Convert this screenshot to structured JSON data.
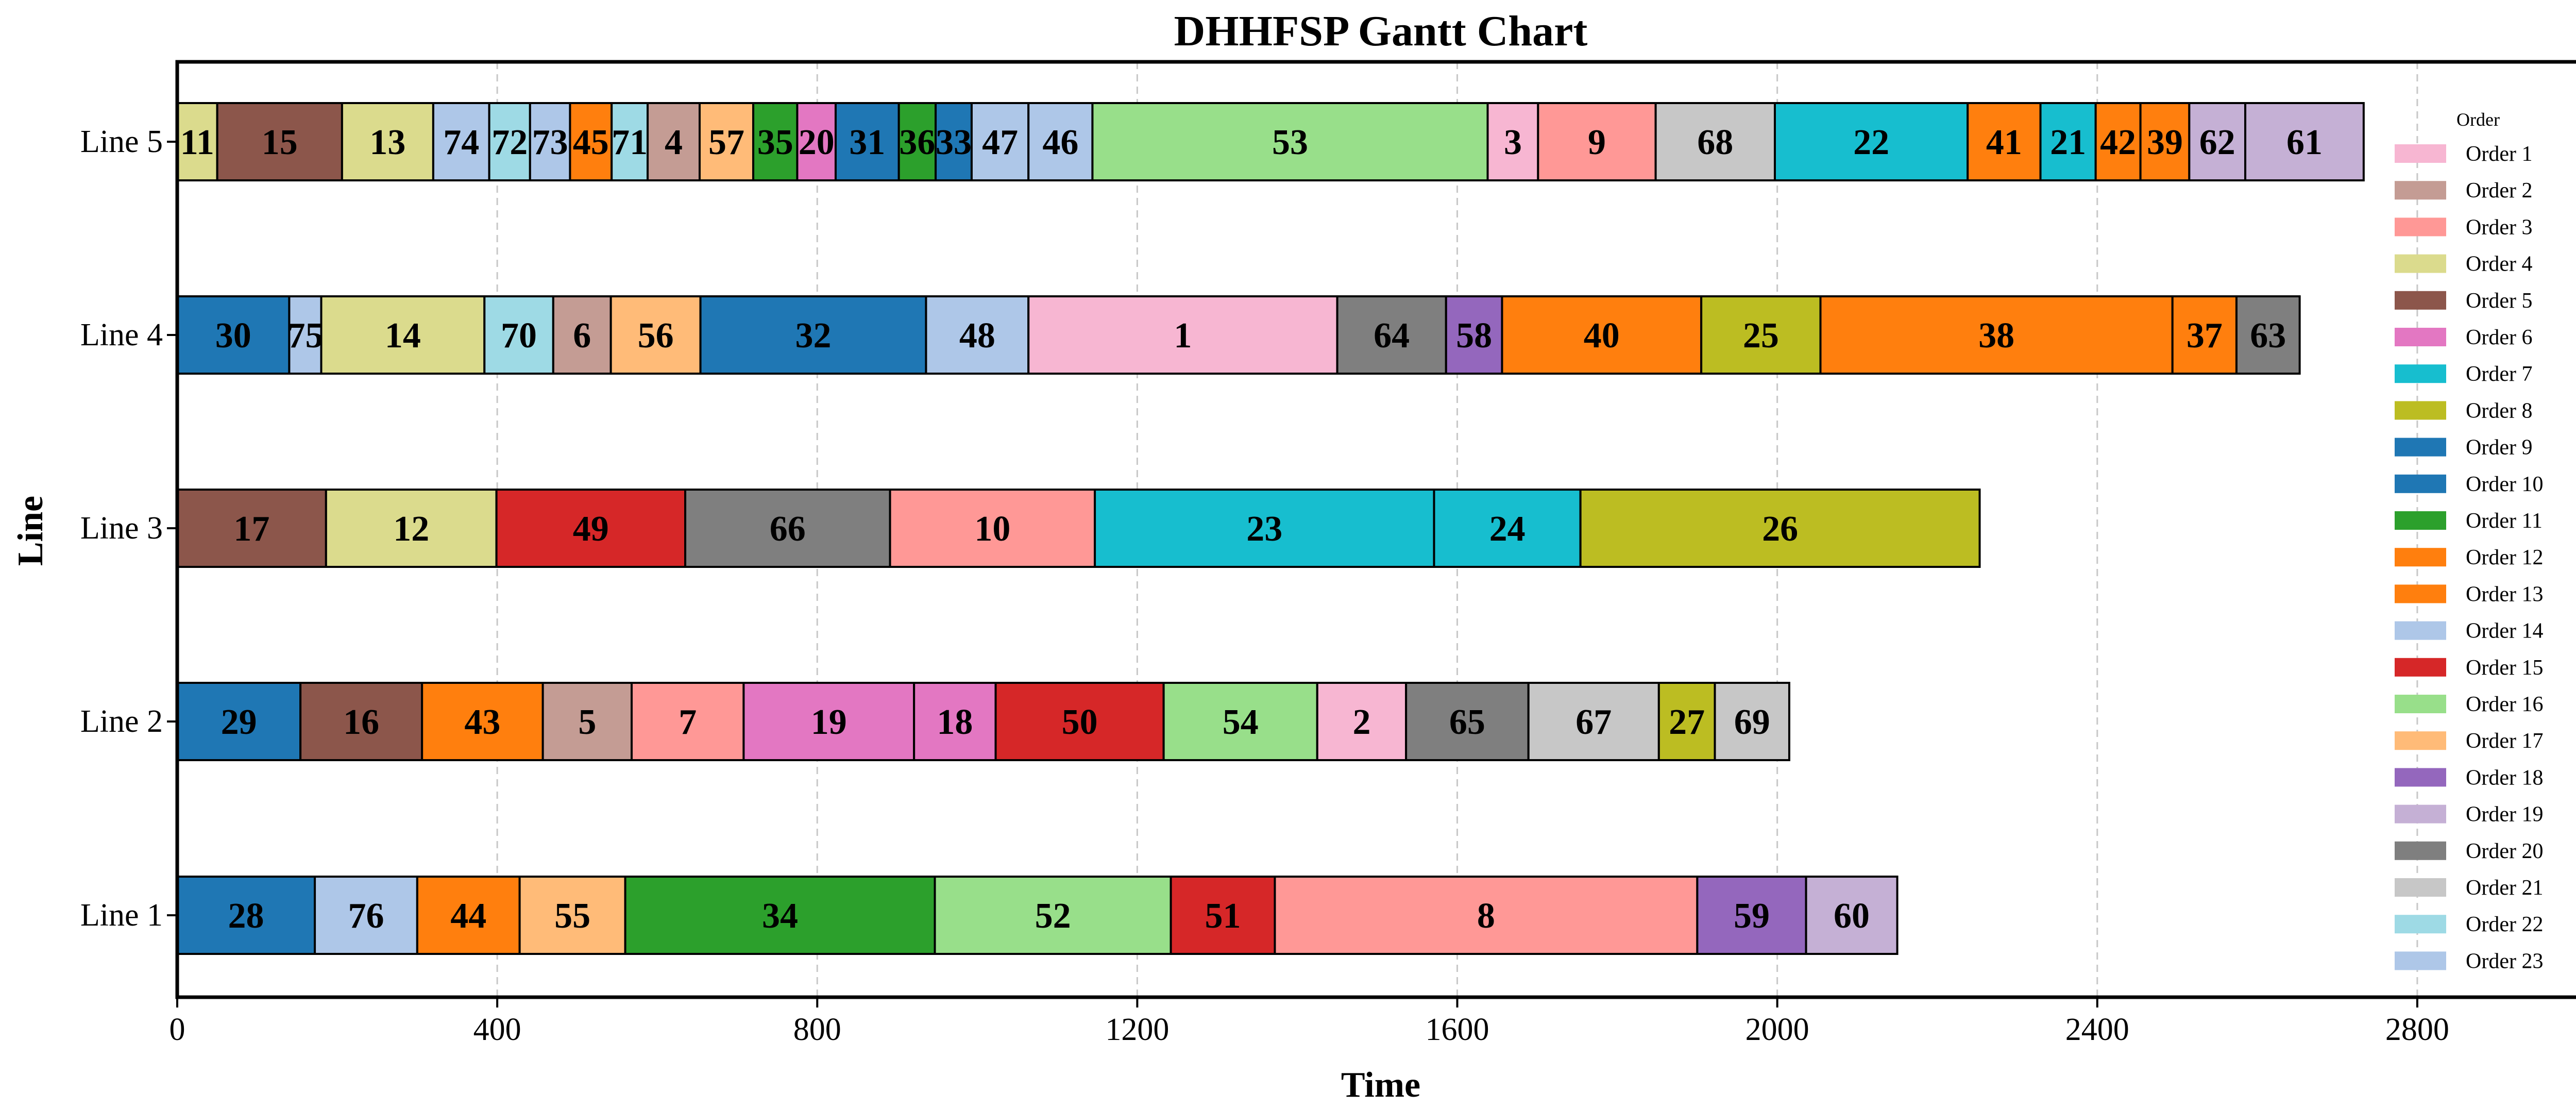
{
  "chart_data": {
    "type": "gantt",
    "title": "DHHFSP Gantt Chart",
    "xlabel": "Time",
    "ylabel": "Line",
    "xlim": [
      0,
      3010
    ],
    "xticks": [
      0,
      400,
      800,
      1200,
      1600,
      2000,
      2400,
      2800
    ],
    "xtick_labels": [
      "0",
      "400",
      "800",
      "1200",
      "1600",
      "2000",
      "2400",
      "2800"
    ],
    "grid": "vertical dashed",
    "legend_title": "Order",
    "legend_position": "right",
    "lines": [
      {
        "name": "Line 1",
        "tasks": [
          {
            "id": "28",
            "start": 0,
            "end": 172,
            "color": "#1f77b4"
          },
          {
            "id": "76",
            "start": 172,
            "end": 300,
            "color": "#aec7e8"
          },
          {
            "id": "44",
            "start": 300,
            "end": 428,
            "color": "#ff7f0e"
          },
          {
            "id": "55",
            "start": 428,
            "end": 560,
            "color": "#ffbb78"
          },
          {
            "id": "34",
            "start": 560,
            "end": 947,
            "color": "#2ca02c"
          },
          {
            "id": "52",
            "start": 947,
            "end": 1242,
            "color": "#98df8a"
          },
          {
            "id": "51",
            "start": 1242,
            "end": 1372,
            "color": "#d62728"
          },
          {
            "id": "8",
            "start": 1372,
            "end": 1900,
            "color": "#ff9896"
          },
          {
            "id": "59",
            "start": 1900,
            "end": 2036,
            "color": "#9467bd"
          },
          {
            "id": "60",
            "start": 2036,
            "end": 2150,
            "color": "#c5b0d5"
          }
        ]
      },
      {
        "name": "Line 2",
        "tasks": [
          {
            "id": "29",
            "start": 0,
            "end": 154,
            "color": "#1f77b4"
          },
          {
            "id": "16",
            "start": 154,
            "end": 306,
            "color": "#8c564b"
          },
          {
            "id": "43",
            "start": 306,
            "end": 457,
            "color": "#ff7f0e"
          },
          {
            "id": "5",
            "start": 457,
            "end": 568,
            "color": "#c49c94"
          },
          {
            "id": "7",
            "start": 568,
            "end": 708,
            "color": "#ff9896"
          },
          {
            "id": "19",
            "start": 708,
            "end": 921,
            "color": "#e377c2"
          },
          {
            "id": "18",
            "start": 921,
            "end": 1023,
            "color": "#e377c2"
          },
          {
            "id": "50",
            "start": 1023,
            "end": 1233,
            "color": "#d62728"
          },
          {
            "id": "54",
            "start": 1233,
            "end": 1425,
            "color": "#98df8a"
          },
          {
            "id": "2",
            "start": 1425,
            "end": 1536,
            "color": "#f7b6d2"
          },
          {
            "id": "65",
            "start": 1536,
            "end": 1689,
            "color": "#7f7f7f"
          },
          {
            "id": "67",
            "start": 1689,
            "end": 1852,
            "color": "#c7c7c7"
          },
          {
            "id": "27",
            "start": 1852,
            "end": 1922,
            "color": "#bcbd22"
          },
          {
            "id": "69",
            "start": 1922,
            "end": 2015,
            "color": "#c7c7c7"
          }
        ]
      },
      {
        "name": "Line 3",
        "tasks": [
          {
            "id": "17",
            "start": 0,
            "end": 186,
            "color": "#8c564b"
          },
          {
            "id": "12",
            "start": 186,
            "end": 399,
            "color": "#dbdb8d"
          },
          {
            "id": "49",
            "start": 399,
            "end": 635,
            "color": "#d62728"
          },
          {
            "id": "66",
            "start": 635,
            "end": 891,
            "color": "#7f7f7f"
          },
          {
            "id": "10",
            "start": 891,
            "end": 1147,
            "color": "#ff9896"
          },
          {
            "id": "23",
            "start": 1147,
            "end": 1571,
            "color": "#17becf"
          },
          {
            "id": "24",
            "start": 1571,
            "end": 1754,
            "color": "#17becf"
          },
          {
            "id": "26",
            "start": 1754,
            "end": 2253,
            "color": "#bcbd22"
          }
        ]
      },
      {
        "name": "Line 4",
        "tasks": [
          {
            "id": "30",
            "start": 0,
            "end": 140,
            "color": "#1f77b4"
          },
          {
            "id": "75",
            "start": 140,
            "end": 180,
            "color": "#aec7e8"
          },
          {
            "id": "14",
            "start": 180,
            "end": 384,
            "color": "#dbdb8d"
          },
          {
            "id": "70",
            "start": 384,
            "end": 470,
            "color": "#9edae5"
          },
          {
            "id": "6",
            "start": 470,
            "end": 542,
            "color": "#c49c94"
          },
          {
            "id": "56",
            "start": 542,
            "end": 654,
            "color": "#ffbb78"
          },
          {
            "id": "32",
            "start": 654,
            "end": 936,
            "color": "#1f77b4"
          },
          {
            "id": "48",
            "start": 936,
            "end": 1064,
            "color": "#aec7e8"
          },
          {
            "id": "1",
            "start": 1064,
            "end": 1450,
            "color": "#f7b6d2"
          },
          {
            "id": "64",
            "start": 1450,
            "end": 1586,
            "color": "#7f7f7f"
          },
          {
            "id": "58",
            "start": 1586,
            "end": 1656,
            "color": "#9467bd"
          },
          {
            "id": "40",
            "start": 1656,
            "end": 1905,
            "color": "#ff7f0e"
          },
          {
            "id": "25",
            "start": 1905,
            "end": 2054,
            "color": "#bcbd22"
          },
          {
            "id": "38",
            "start": 2054,
            "end": 2494,
            "color": "#ff7f0e"
          },
          {
            "id": "37",
            "start": 2494,
            "end": 2574,
            "color": "#ff7f0e"
          },
          {
            "id": "63",
            "start": 2574,
            "end": 2653,
            "color": "#7f7f7f"
          }
        ]
      },
      {
        "name": "Line 5",
        "tasks": [
          {
            "id": "11",
            "start": 0,
            "end": 50,
            "color": "#dbdb8d"
          },
          {
            "id": "15",
            "start": 50,
            "end": 206,
            "color": "#8c564b"
          },
          {
            "id": "13",
            "start": 206,
            "end": 320,
            "color": "#dbdb8d"
          },
          {
            "id": "74",
            "start": 320,
            "end": 390,
            "color": "#aec7e8"
          },
          {
            "id": "72",
            "start": 390,
            "end": 441,
            "color": "#9edae5"
          },
          {
            "id": "73",
            "start": 441,
            "end": 491,
            "color": "#aec7e8"
          },
          {
            "id": "45",
            "start": 491,
            "end": 543,
            "color": "#ff7f0e"
          },
          {
            "id": "71",
            "start": 543,
            "end": 588,
            "color": "#9edae5"
          },
          {
            "id": "4",
            "start": 588,
            "end": 653,
            "color": "#c49c94"
          },
          {
            "id": "57",
            "start": 653,
            "end": 720,
            "color": "#ffbb78"
          },
          {
            "id": "35",
            "start": 720,
            "end": 775,
            "color": "#2ca02c"
          },
          {
            "id": "20",
            "start": 775,
            "end": 823,
            "color": "#e377c2"
          },
          {
            "id": "31",
            "start": 823,
            "end": 902,
            "color": "#1f77b4"
          },
          {
            "id": "36",
            "start": 902,
            "end": 948,
            "color": "#2ca02c"
          },
          {
            "id": "33",
            "start": 948,
            "end": 993,
            "color": "#1f77b4"
          },
          {
            "id": "47",
            "start": 993,
            "end": 1064,
            "color": "#aec7e8"
          },
          {
            "id": "46",
            "start": 1064,
            "end": 1144,
            "color": "#aec7e8"
          },
          {
            "id": "53",
            "start": 1144,
            "end": 1638,
            "color": "#98df8a"
          },
          {
            "id": "3",
            "start": 1638,
            "end": 1701,
            "color": "#f7b6d2"
          },
          {
            "id": "9",
            "start": 1701,
            "end": 1848,
            "color": "#ff9896"
          },
          {
            "id": "68",
            "start": 1848,
            "end": 1997,
            "color": "#c7c7c7"
          },
          {
            "id": "22",
            "start": 1997,
            "end": 2238,
            "color": "#17becf"
          },
          {
            "id": "41",
            "start": 2238,
            "end": 2329,
            "color": "#ff7f0e"
          },
          {
            "id": "21",
            "start": 2329,
            "end": 2398,
            "color": "#17becf"
          },
          {
            "id": "42",
            "start": 2398,
            "end": 2454,
            "color": "#ff7f0e"
          },
          {
            "id": "39",
            "start": 2454,
            "end": 2515,
            "color": "#ff7f0e"
          },
          {
            "id": "62",
            "start": 2515,
            "end": 2585,
            "color": "#c5b0d5"
          },
          {
            "id": "61",
            "start": 2585,
            "end": 2733,
            "color": "#c5b0d5"
          }
        ]
      }
    ],
    "legend": [
      {
        "label": "Order 1",
        "color": "#f7b6d2"
      },
      {
        "label": "Order 2",
        "color": "#c49c94"
      },
      {
        "label": "Order 3",
        "color": "#ff9896"
      },
      {
        "label": "Order 4",
        "color": "#dbdb8d"
      },
      {
        "label": "Order 5",
        "color": "#8c564b"
      },
      {
        "label": "Order 6",
        "color": "#e377c2"
      },
      {
        "label": "Order 7",
        "color": "#17becf"
      },
      {
        "label": "Order 8",
        "color": "#bcbd22"
      },
      {
        "label": "Order 9",
        "color": "#1f77b4"
      },
      {
        "label": "Order 10",
        "color": "#1f77b4"
      },
      {
        "label": "Order 11",
        "color": "#2ca02c"
      },
      {
        "label": "Order 12",
        "color": "#ff7f0e"
      },
      {
        "label": "Order 13",
        "color": "#ff7f0e"
      },
      {
        "label": "Order 14",
        "color": "#aec7e8"
      },
      {
        "label": "Order 15",
        "color": "#d62728"
      },
      {
        "label": "Order 16",
        "color": "#98df8a"
      },
      {
        "label": "Order 17",
        "color": "#ffbb78"
      },
      {
        "label": "Order 18",
        "color": "#9467bd"
      },
      {
        "label": "Order 19",
        "color": "#c5b0d5"
      },
      {
        "label": "Order 20",
        "color": "#7f7f7f"
      },
      {
        "label": "Order 21",
        "color": "#c7c7c7"
      },
      {
        "label": "Order 22",
        "color": "#9edae5"
      },
      {
        "label": "Order 23",
        "color": "#aec7e8"
      }
    ]
  }
}
